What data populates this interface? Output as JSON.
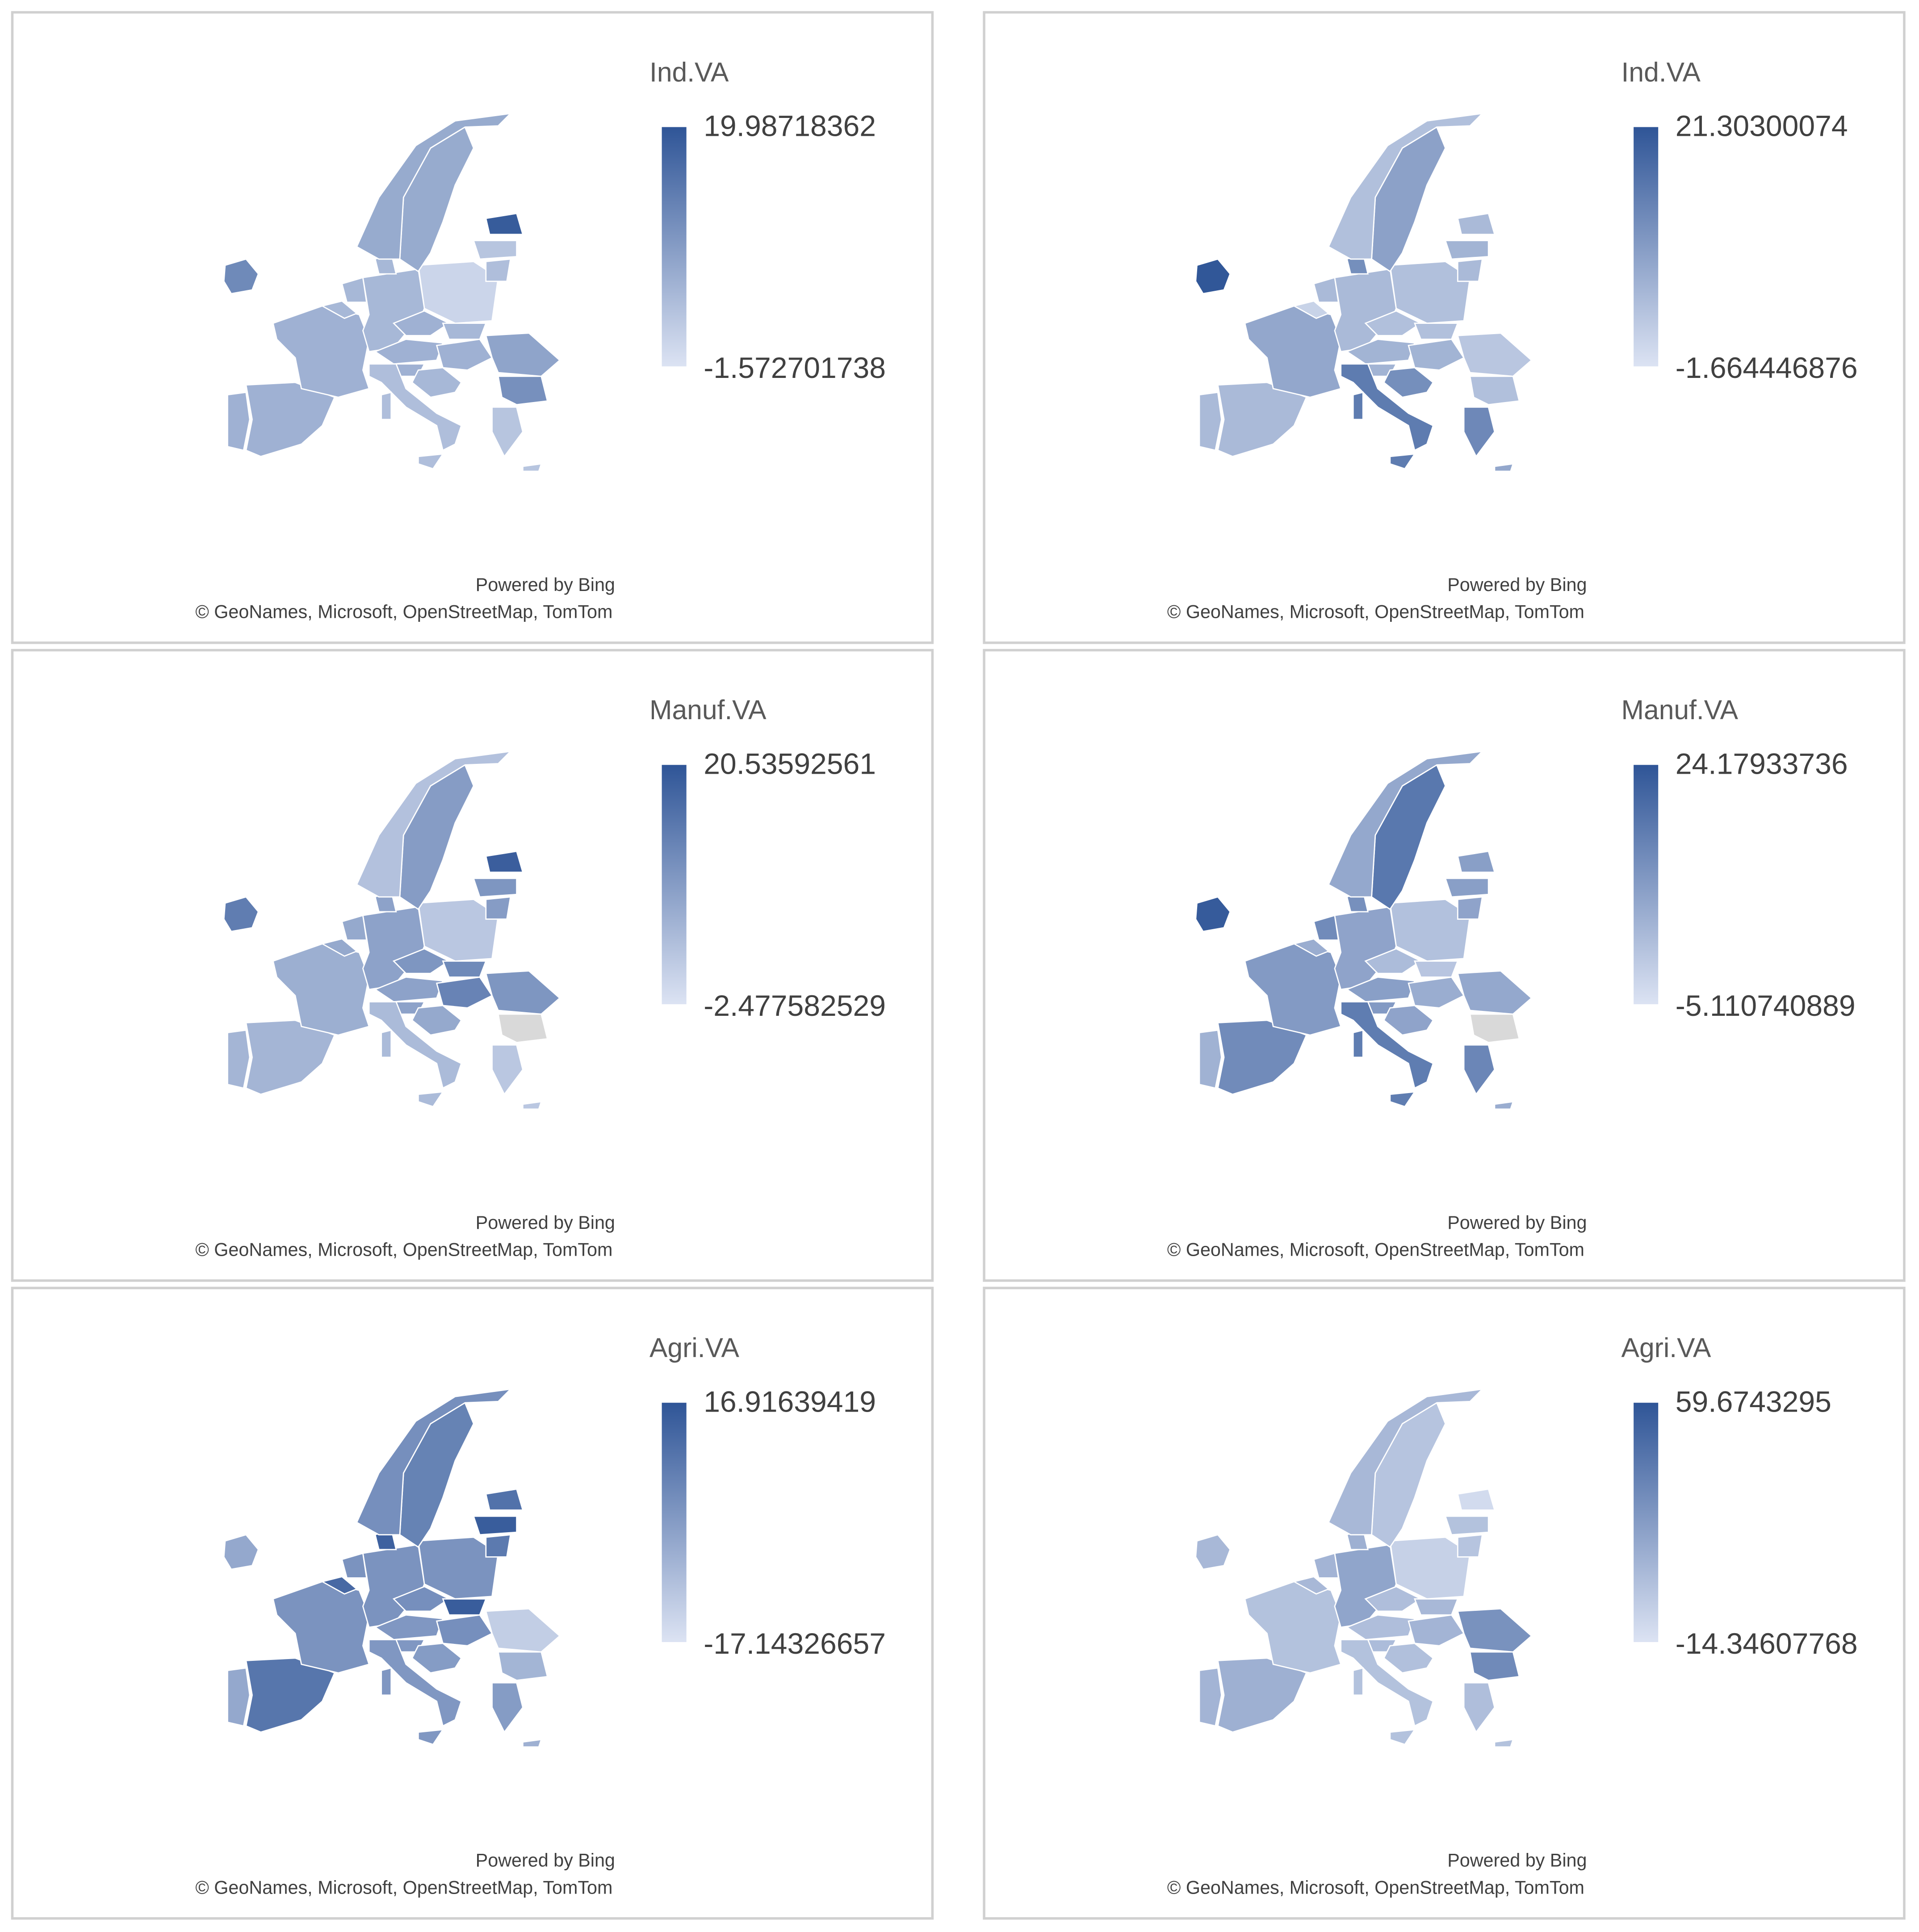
{
  "colors": {
    "low": "#dce3f3",
    "high": "#2f5597",
    "no_data": "#d9d9d9"
  },
  "chart_data": [
    {
      "type": "map",
      "title": "Ind.VA",
      "legend_max": 19.98718362,
      "legend_min": -1.572701738,
      "attribution_1": "Powered by Bing",
      "attribution_2": "© GeoNames, Microsoft, OpenStreetMap, TomTom",
      "values": [
        12,
        6,
        6,
        6,
        5,
        5,
        5,
        5,
        0.5,
        6,
        6,
        5,
        6,
        8,
        11,
        6,
        5,
        4,
        4,
        4,
        3,
        19,
        3,
        4,
        7,
        7,
        3
      ]
    },
    {
      "type": "map",
      "title": "Ind.VA",
      "legend_max": 21.30300074,
      "legend_min": -1.664446876,
      "attribution_1": "Powered by Bing",
      "attribution_2": "© GeoNames, Microsoft, OpenStreetMap, TomTom",
      "values": [
        21,
        5,
        5,
        8,
        1,
        5,
        5,
        12,
        4,
        4,
        6,
        4,
        6,
        3,
        4,
        6,
        12,
        15,
        15,
        15,
        13,
        5,
        6,
        5,
        9,
        4,
        8
      ]
    },
    {
      "type": "map",
      "title": "Manuf.VA",
      "legend_max": 20.53592561,
      "legend_min": -2.477582529,
      "attribution_1": "Powered by Bing",
      "attribution_2": "© GeoNames, Microsoft, OpenStreetMap, TomTom",
      "values": [
        14,
        5,
        5,
        6,
        7,
        7,
        8,
        8,
        2,
        10,
        8,
        12,
        13,
        10,
        null,
        8,
        7,
        4,
        4,
        4,
        2,
        19,
        10,
        9,
        9,
        3,
        2
      ]
    },
    {
      "type": "map",
      "title": "Manuf.VA",
      "legend_max": 24.17933736,
      "legend_min": -5.110740889,
      "attribution_1": "Powered by Bing",
      "attribution_2": "© GeoNames, Microsoft, OpenStreetMap, TomTom",
      "values": [
        23,
        5,
        13,
        10,
        6,
        13,
        8,
        12,
        2,
        3,
        9,
        1,
        6,
        7,
        null,
        10,
        8,
        16,
        16,
        16,
        14,
        9,
        9,
        8,
        17,
        7,
        6
      ]
    },
    {
      "type": "map",
      "title": "Agri.VA",
      "legend_max": 16.91639419,
      "legend_min": -17.14326657,
      "attribution_1": "Powered by Bing",
      "attribution_2": "© GeoNames, Microsoft, OpenStreetMap, TomTom",
      "values": [
        -3,
        -3,
        9,
        2,
        12,
        2,
        2,
        14,
        2,
        3,
        1,
        15,
        3,
        -12,
        -6,
        1,
        0,
        1,
        1,
        1,
        0,
        10,
        15,
        8,
        6,
        3,
        -5
      ]
    },
    {
      "type": "map",
      "title": "Agri.VA",
      "legend_max": 59.6743295,
      "legend_min": -14.34607768,
      "attribution_1": "Powered by Bing",
      "attribution_2": "© GeoNames, Microsoft, OpenStreetMap, TomTom",
      "values": [
        8,
        10,
        12,
        3,
        8,
        10,
        18,
        12,
        -5,
        5,
        5,
        8,
        10,
        28,
        32,
        6,
        4,
        3,
        3,
        3,
        5,
        -10,
        3,
        2,
        2,
        8,
        3
      ]
    }
  ]
}
